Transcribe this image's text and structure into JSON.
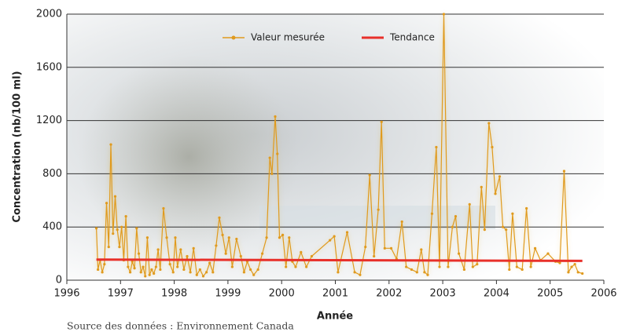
{
  "chart_data": {
    "type": "line",
    "y_label": "Concentration (nb/100 ml)",
    "x_label": "Année",
    "source": "Source des données : Environnement Canada",
    "xlim": [
      1996,
      2006
    ],
    "xticks": [
      1996,
      1997,
      1998,
      1999,
      2000,
      2001,
      2002,
      2003,
      2004,
      2005,
      2006
    ],
    "ylim": [
      0,
      2000
    ],
    "yticks": [
      0,
      400,
      800,
      1200,
      1600,
      2000
    ],
    "grid": true,
    "legend": "top",
    "series": [
      {
        "name": "Valeur mesurée",
        "color": "#e09a1e",
        "markers": true,
        "x": [
          1996.55,
          1996.58,
          1996.62,
          1996.66,
          1996.7,
          1996.74,
          1996.78,
          1996.82,
          1996.86,
          1996.9,
          1996.94,
          1996.98,
          1997.02,
          1997.06,
          1997.1,
          1997.14,
          1997.18,
          1997.22,
          1997.26,
          1997.3,
          1997.34,
          1997.38,
          1997.42,
          1997.46,
          1997.5,
          1997.54,
          1997.58,
          1997.62,
          1997.66,
          1997.7,
          1997.74,
          1997.8,
          1997.86,
          1997.92,
          1997.98,
          1998.02,
          1998.06,
          1998.12,
          1998.18,
          1998.24,
          1998.3,
          1998.36,
          1998.42,
          1998.48,
          1998.54,
          1998.6,
          1998.66,
          1998.72,
          1998.78,
          1998.84,
          1998.9,
          1998.96,
          1999.02,
          1999.08,
          1999.16,
          1999.24,
          1999.3,
          1999.36,
          1999.42,
          1999.48,
          1999.56,
          1999.64,
          1999.72,
          1999.78,
          1999.82,
          1999.88,
          1999.92,
          1999.96,
          2000.02,
          2000.08,
          2000.14,
          2000.2,
          2000.26,
          2000.36,
          2000.46,
          2000.56,
          2000.9,
          2000.98,
          2001.05,
          2001.22,
          2001.36,
          2001.46,
          2001.56,
          2001.64,
          2001.72,
          2001.8,
          2001.86,
          2001.92,
          2002.04,
          2002.14,
          2002.24,
          2002.32,
          2002.42,
          2002.52,
          2002.6,
          2002.66,
          2002.72,
          2002.8,
          2002.88,
          2002.94,
          2003.02,
          2003.1,
          2003.18,
          2003.24,
          2003.3,
          2003.4,
          2003.5,
          2003.56,
          2003.64,
          2003.72,
          2003.78,
          2003.86,
          2003.92,
          2003.98,
          2004.06,
          2004.12,
          2004.18,
          2004.24,
          2004.3,
          2004.38,
          2004.48,
          2004.56,
          2004.64,
          2004.72,
          2004.82,
          2004.96,
          2005.1,
          2005.18,
          2005.26,
          2005.34,
          2005.4,
          2005.46,
          2005.52,
          2005.6
        ],
        "values": [
          390,
          80,
          150,
          60,
          120,
          580,
          250,
          1020,
          350,
          630,
          380,
          250,
          400,
          150,
          480,
          100,
          60,
          140,
          90,
          390,
          200,
          60,
          100,
          30,
          320,
          40,
          80,
          50,
          100,
          230,
          80,
          540,
          320,
          120,
          60,
          320,
          100,
          230,
          80,
          180,
          60,
          240,
          40,
          80,
          30,
          60,
          130,
          60,
          260,
          470,
          340,
          200,
          320,
          100,
          310,
          180,
          60,
          140,
          80,
          40,
          80,
          200,
          320,
          920,
          800,
          1230,
          950,
          320,
          340,
          100,
          320,
          140,
          100,
          210,
          100,
          180,
          300,
          330,
          60,
          360,
          60,
          40,
          250,
          790,
          180,
          530,
          1190,
          240,
          240,
          160,
          440,
          100,
          80,
          60,
          230,
          60,
          40,
          500,
          1000,
          100,
          2000,
          100,
          400,
          480,
          200,
          80,
          570,
          100,
          120,
          700,
          380,
          1180,
          1000,
          650,
          780,
          400,
          380,
          80,
          500,
          100,
          80,
          540,
          100,
          240,
          150,
          200,
          140,
          130,
          820,
          60,
          100,
          120,
          60,
          50
        ]
      },
      {
        "name": "Tendance",
        "color": "#e8302a",
        "markers": false,
        "x": [
          1996.55,
          2005.6
        ],
        "values": [
          155,
          145
        ]
      }
    ]
  }
}
